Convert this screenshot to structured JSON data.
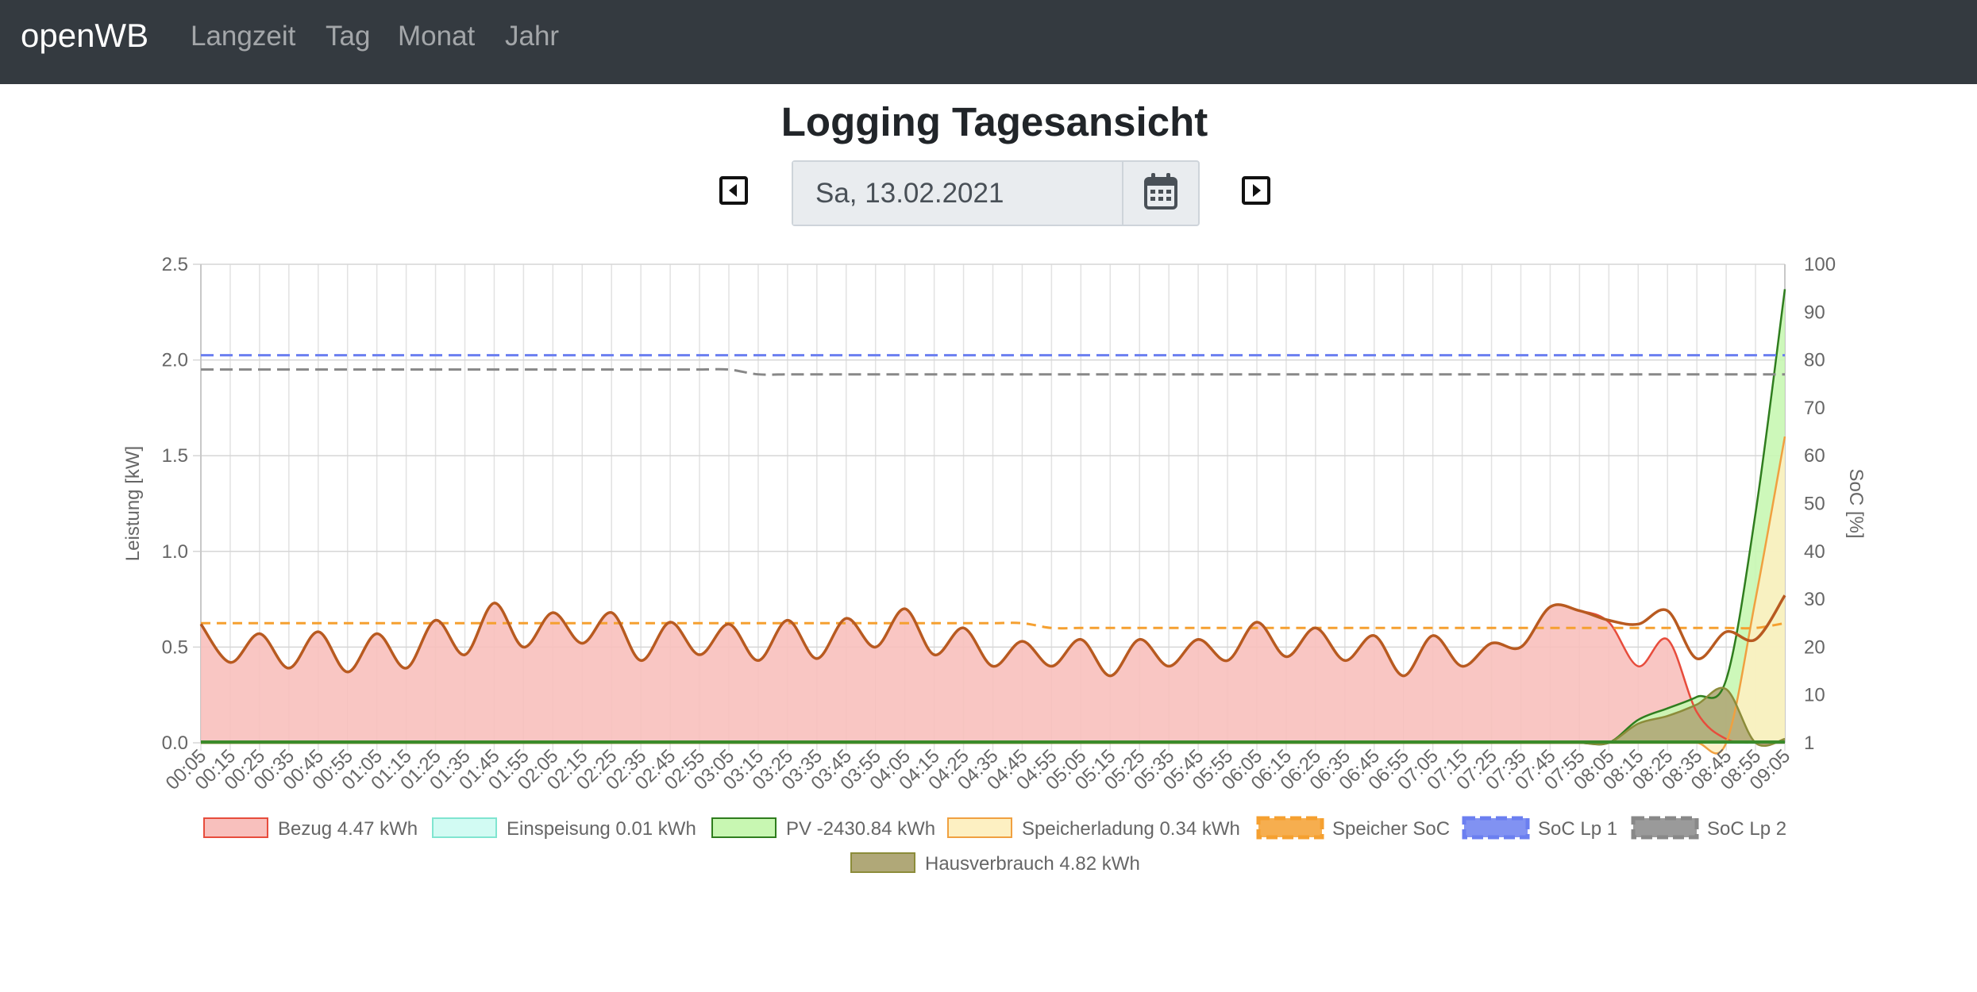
{
  "navbar": {
    "brand": "openWB",
    "links": [
      {
        "label": "Langzeit"
      },
      {
        "label": "Tag"
      },
      {
        "label": "Monat"
      },
      {
        "label": "Jahr"
      }
    ]
  },
  "page": {
    "title": "Logging Tagesansicht",
    "date_value": "Sa, 13.02.2021"
  },
  "icons": {
    "prev": "caret-left-square-icon",
    "next": "caret-right-square-icon",
    "calendar": "calendar-icon"
  },
  "chart_data": {
    "type": "line",
    "x_ticks": [
      "00:05",
      "00:15",
      "00:25",
      "00:35",
      "00:45",
      "00:55",
      "01:05",
      "01:15",
      "01:25",
      "01:35",
      "01:45",
      "01:55",
      "02:05",
      "02:15",
      "02:25",
      "02:35",
      "02:45",
      "02:55",
      "03:05",
      "03:15",
      "03:25",
      "03:35",
      "03:45",
      "03:55",
      "04:05",
      "04:15",
      "04:25",
      "04:35",
      "04:45",
      "04:55",
      "05:05",
      "05:15",
      "05:25",
      "05:35",
      "05:45",
      "05:55",
      "06:05",
      "06:15",
      "06:25",
      "06:35",
      "06:45",
      "06:55",
      "07:05",
      "07:15",
      "07:25",
      "07:35",
      "07:45",
      "07:55",
      "08:05",
      "08:15",
      "08:25",
      "08:35",
      "08:45",
      "08:55",
      "09:05"
    ],
    "y_left": {
      "label": "Leistung [kW]",
      "min": 0,
      "max": 2.5,
      "ticks": [
        "0.0",
        "0.5",
        "1.0",
        "1.5",
        "2.0",
        "2.5"
      ]
    },
    "y_right": {
      "label": "SoC [%]",
      "min": 0,
      "max": 100,
      "ticks": [
        "1",
        "10",
        "20",
        "30",
        "40",
        "50",
        "60",
        "70",
        "80",
        "90",
        "100"
      ]
    },
    "grid": true,
    "legend_position": "bottom",
    "series": [
      {
        "name": "Bezug 4.47 kWh",
        "axis": "left",
        "fill": true,
        "color": "#e74c3c",
        "fill_color": "#f8c0bd",
        "values": [
          0.62,
          0.42,
          0.57,
          0.39,
          0.58,
          0.37,
          0.57,
          0.39,
          0.64,
          0.46,
          0.73,
          0.5,
          0.68,
          0.52,
          0.68,
          0.43,
          0.63,
          0.46,
          0.62,
          0.43,
          0.64,
          0.44,
          0.65,
          0.5,
          0.7,
          0.46,
          0.6,
          0.4,
          0.53,
          0.4,
          0.54,
          0.35,
          0.54,
          0.4,
          0.54,
          0.43,
          0.63,
          0.45,
          0.6,
          0.43,
          0.56,
          0.35,
          0.56,
          0.4,
          0.52,
          0.5,
          0.71,
          0.69,
          0.63,
          0.4,
          0.54,
          0.16,
          0.02,
          0.0,
          0.0
        ]
      },
      {
        "name": "Einspeisung 0.01 kWh",
        "axis": "left",
        "fill": true,
        "color": "#80e5d0",
        "fill_color": "#d2fbf3",
        "values": [
          0,
          0,
          0,
          0,
          0,
          0,
          0,
          0,
          0,
          0,
          0,
          0,
          0,
          0,
          0,
          0,
          0,
          0,
          0,
          0,
          0,
          0,
          0,
          0,
          0,
          0,
          0,
          0,
          0,
          0,
          0,
          0,
          0,
          0,
          0,
          0,
          0,
          0,
          0,
          0,
          0,
          0,
          0,
          0,
          0,
          0,
          0,
          0,
          0,
          0,
          0,
          0,
          0,
          0,
          0
        ]
      },
      {
        "name": "PV -2430.84 kWh",
        "axis": "left",
        "fill": true,
        "color": "#2f7d1e",
        "fill_color": "#c8f7b2",
        "values": [
          0,
          0,
          0,
          0,
          0,
          0,
          0,
          0,
          0,
          0,
          0,
          0,
          0,
          0,
          0,
          0,
          0,
          0,
          0,
          0,
          0,
          0,
          0,
          0,
          0,
          0,
          0,
          0,
          0,
          0,
          0,
          0,
          0,
          0,
          0,
          0,
          0,
          0,
          0,
          0,
          0,
          0,
          0,
          0,
          0,
          0,
          0,
          0,
          0.0,
          0.12,
          0.18,
          0.24,
          0.33,
          1.2,
          2.37
        ]
      },
      {
        "name": "Speicherladung 0.34 kWh",
        "axis": "left",
        "fill": true,
        "color": "#f0a040",
        "fill_color": "#fdf0c2",
        "values": [
          0,
          0,
          0,
          0,
          0,
          0,
          0,
          0,
          0,
          0,
          0,
          0,
          0,
          0,
          0,
          0,
          0,
          0,
          0,
          0,
          0,
          0,
          0,
          0,
          0,
          0,
          0,
          0,
          0,
          0,
          0,
          0,
          0,
          0,
          0,
          0,
          0,
          0,
          0,
          0,
          0,
          0,
          0,
          0,
          0,
          0,
          0,
          0,
          0,
          0,
          0,
          0,
          0,
          0.75,
          1.6
        ]
      },
      {
        "name": "Speicher SoC",
        "axis": "right",
        "dashed": true,
        "color": "#f5a030",
        "values": [
          25,
          25,
          25,
          25,
          25,
          25,
          25,
          25,
          25,
          25,
          25,
          25,
          25,
          25,
          25,
          25,
          25,
          25,
          25,
          25,
          25,
          25,
          25,
          25,
          25,
          25,
          25,
          25,
          25,
          24,
          24,
          24,
          24,
          24,
          24,
          24,
          24,
          24,
          24,
          24,
          24,
          24,
          24,
          24,
          24,
          24,
          24,
          24,
          24,
          24,
          24,
          24,
          24,
          24,
          25
        ]
      },
      {
        "name": "SoC Lp 1",
        "axis": "right",
        "dashed": true,
        "color": "#6b7ff0",
        "values": [
          81,
          81,
          81,
          81,
          81,
          81,
          81,
          81,
          81,
          81,
          81,
          81,
          81,
          81,
          81,
          81,
          81,
          81,
          81,
          81,
          81,
          81,
          81,
          81,
          81,
          81,
          81,
          81,
          81,
          81,
          81,
          81,
          81,
          81,
          81,
          81,
          81,
          81,
          81,
          81,
          81,
          81,
          81,
          81,
          81,
          81,
          81,
          81,
          81,
          81,
          81,
          81,
          81,
          81,
          81
        ]
      },
      {
        "name": "SoC Lp 2",
        "axis": "right",
        "dashed": true,
        "color": "#888888",
        "values": [
          78,
          78,
          78,
          78,
          78,
          78,
          78,
          78,
          78,
          78,
          78,
          78,
          78,
          78,
          78,
          78,
          78,
          78,
          78,
          77,
          77,
          77,
          77,
          77,
          77,
          77,
          77,
          77,
          77,
          77,
          77,
          77,
          77,
          77,
          77,
          77,
          77,
          77,
          77,
          77,
          77,
          77,
          77,
          77,
          77,
          77,
          77,
          77,
          77,
          77,
          77,
          77,
          77,
          77,
          77
        ]
      },
      {
        "name": "Hausverbrauch 4.82 kWh",
        "axis": "left",
        "fill": true,
        "color": "#8c8c3a",
        "fill_color": "#b0a878",
        "values": [
          0,
          0,
          0,
          0,
          0,
          0,
          0,
          0,
          0,
          0,
          0,
          0,
          0,
          0,
          0,
          0,
          0,
          0,
          0,
          0,
          0,
          0,
          0,
          0,
          0,
          0,
          0,
          0,
          0,
          0,
          0,
          0,
          0,
          0,
          0,
          0,
          0,
          0,
          0,
          0,
          0,
          0,
          0,
          0,
          0,
          0,
          0,
          0,
          0.0,
          0.1,
          0.14,
          0.2,
          0.28,
          0.0,
          0.02
        ]
      }
    ],
    "overlay_lines": [
      {
        "of": "Bezug 4.47 kWh",
        "color": "#b85a20",
        "values": [
          0.62,
          0.42,
          0.57,
          0.39,
          0.58,
          0.37,
          0.57,
          0.39,
          0.64,
          0.46,
          0.73,
          0.5,
          0.68,
          0.52,
          0.68,
          0.43,
          0.63,
          0.46,
          0.62,
          0.43,
          0.64,
          0.44,
          0.65,
          0.5,
          0.7,
          0.46,
          0.6,
          0.4,
          0.53,
          0.4,
          0.54,
          0.35,
          0.54,
          0.4,
          0.54,
          0.43,
          0.63,
          0.45,
          0.6,
          0.43,
          0.56,
          0.35,
          0.56,
          0.4,
          0.52,
          0.5,
          0.71,
          0.69,
          0.64,
          0.62,
          0.69,
          0.44,
          0.58,
          0.54,
          0.77
        ]
      }
    ]
  }
}
